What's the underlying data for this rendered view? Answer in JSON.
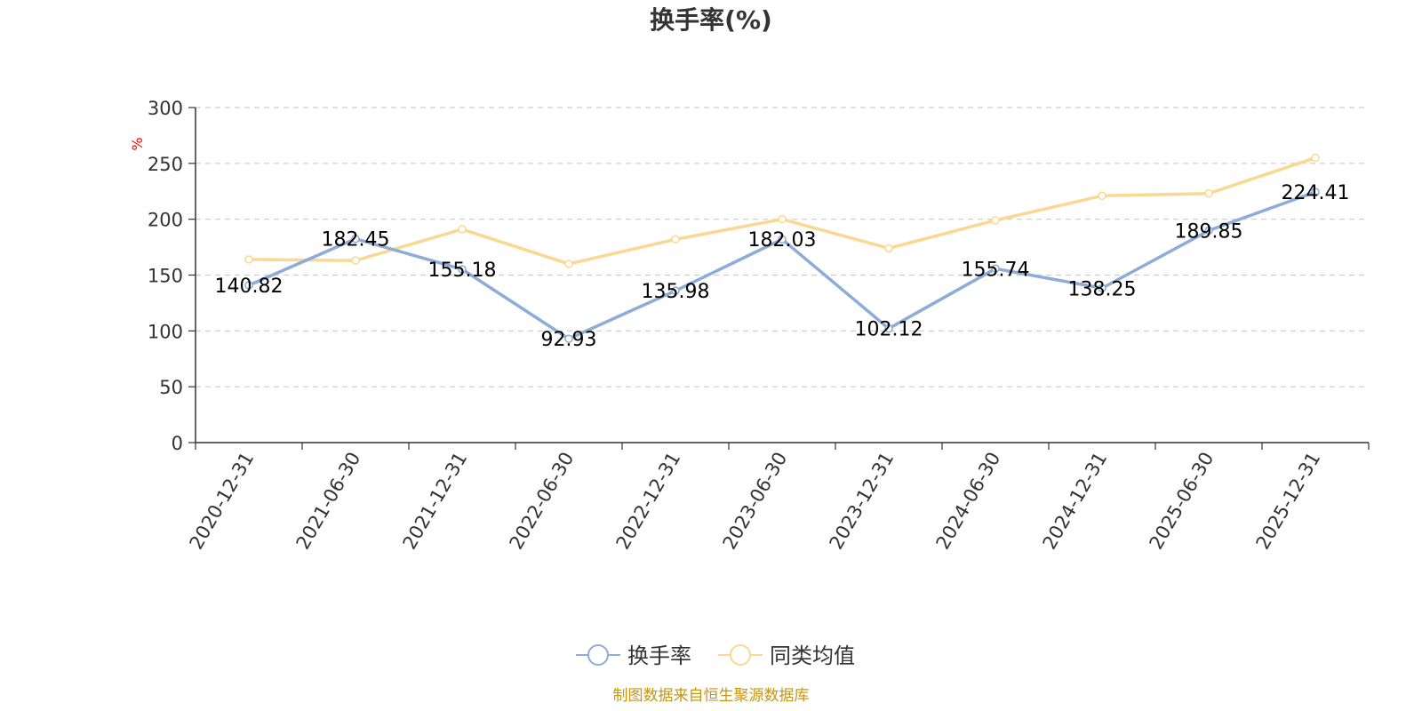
{
  "chart_data": {
    "type": "line",
    "title": "换手率(%)",
    "ylabel": "%",
    "xlabel": "",
    "ylim": [
      0,
      300
    ],
    "yticks": [
      0,
      50,
      100,
      150,
      200,
      250,
      300
    ],
    "grid": "horizontal-dashed",
    "legend_position": "bottom-center",
    "categories": [
      "2020-12-31",
      "2021-06-30",
      "2021-12-31",
      "2022-06-30",
      "2022-12-31",
      "2023-06-30",
      "2023-12-31",
      "2024-06-30",
      "2024-12-31",
      "2025-06-30",
      "2025-12-31"
    ],
    "series": [
      {
        "name": "换手率",
        "color": "#8eacd8",
        "show_labels": true,
        "values": [
          140.82,
          182.45,
          155.18,
          92.93,
          135.98,
          182.03,
          102.12,
          155.74,
          138.25,
          189.85,
          224.41
        ]
      },
      {
        "name": "同类均值",
        "color": "#fad891",
        "show_labels": false,
        "values": [
          164,
          163,
          191,
          160,
          182,
          200,
          174,
          199,
          221,
          223,
          255
        ]
      }
    ]
  },
  "footer": {
    "source": "制图数据来自恒生聚源数据库",
    "color": "#c8960f"
  }
}
